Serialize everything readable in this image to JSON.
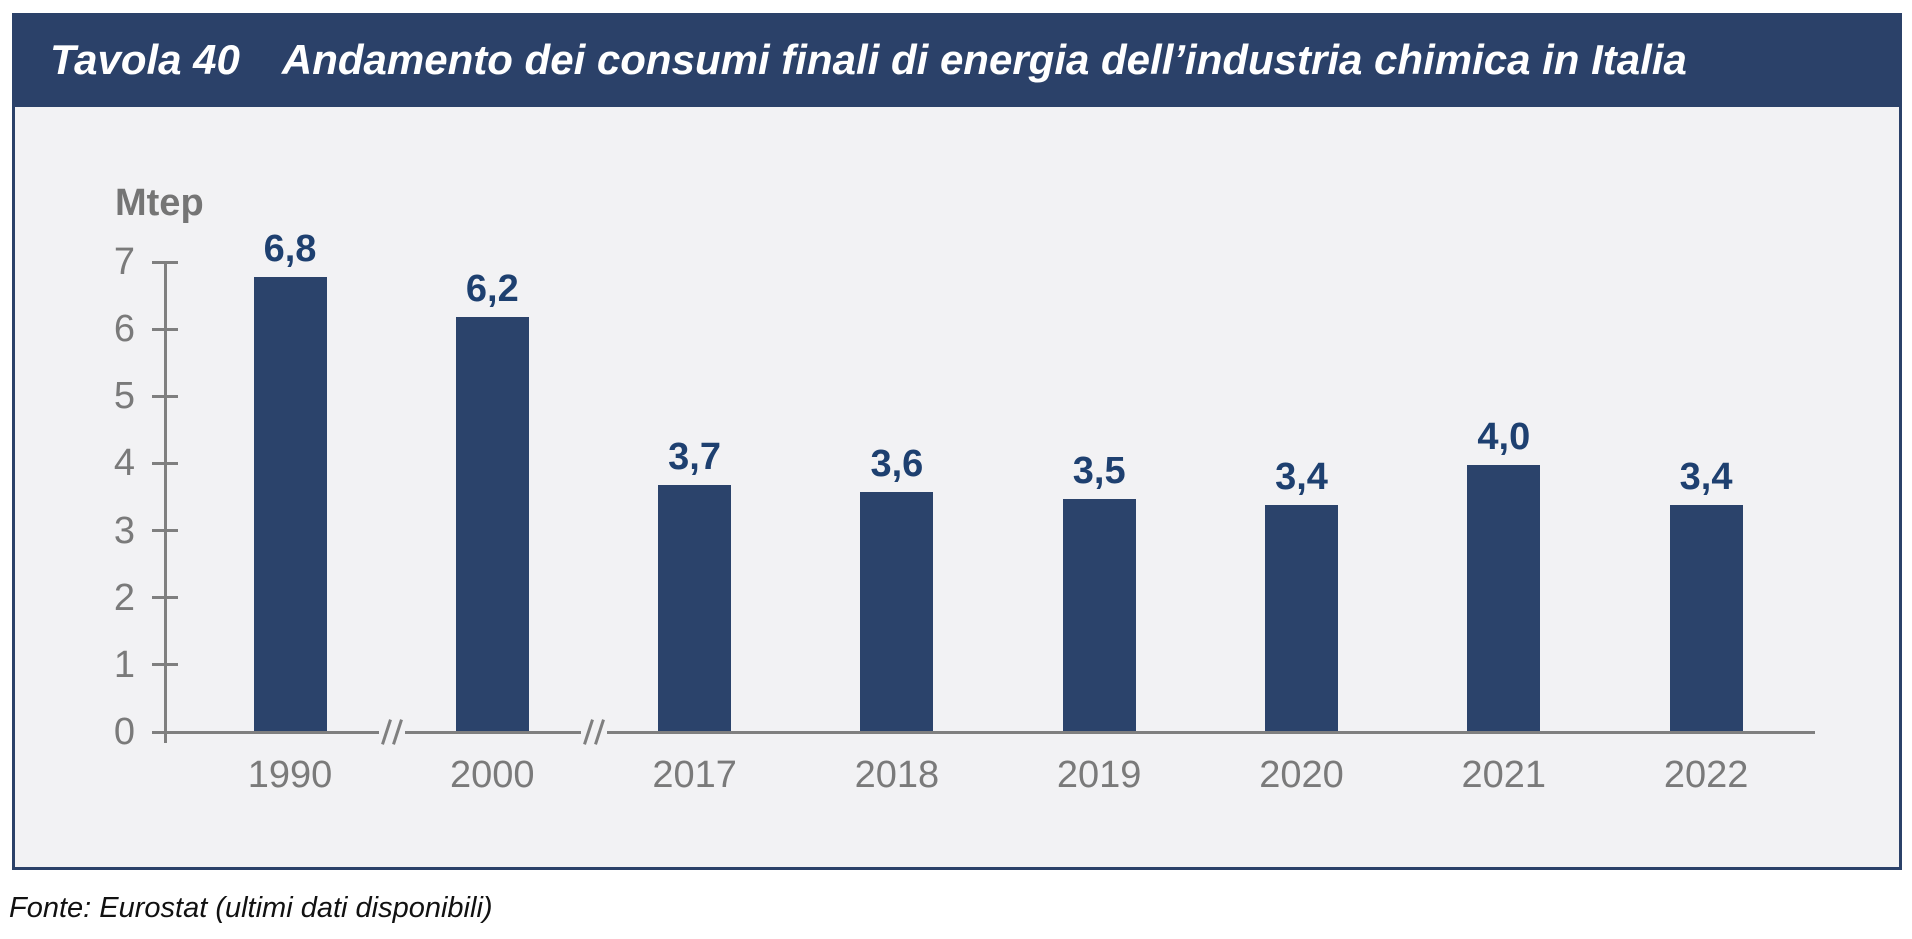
{
  "header": {
    "tag": "Tavola 40",
    "title": "Andamento dei consumi finali di energia dell’industria chimica in Italia"
  },
  "footer": {
    "source": "Fonte: Eurostat (ultimi dati disponibili)"
  },
  "colors": {
    "header_bg": "#2b4169",
    "box_border": "#2b4169",
    "chart_bg": "#f2f2f4",
    "bar": "#2b436b",
    "value_label": "#1e4070",
    "axis_gray": "#7f7f7f",
    "tick_text_gray": "#7a7a7a"
  },
  "chart_data": {
    "type": "bar",
    "title": "Andamento dei consumi finali di energia dell’industria chimica in Italia",
    "xlabel": "",
    "ylabel": "Mtep",
    "categories": [
      "1990",
      "2000",
      "2017",
      "2018",
      "2019",
      "2020",
      "2021",
      "2022"
    ],
    "values": [
      6.8,
      6.2,
      3.7,
      3.6,
      3.5,
      3.4,
      4.0,
      3.4
    ],
    "value_labels": [
      "6,8",
      "6,2",
      "3,7",
      "3,6",
      "3,5",
      "3,4",
      "4,0",
      "3,4"
    ],
    "ylim": [
      0,
      7
    ],
    "yticks": [
      0,
      1,
      2,
      3,
      4,
      5,
      6,
      7
    ],
    "grid": false,
    "legend": "none",
    "axis_breaks_between": [
      [
        "1990",
        "2000"
      ],
      [
        "2000",
        "2017"
      ]
    ]
  }
}
